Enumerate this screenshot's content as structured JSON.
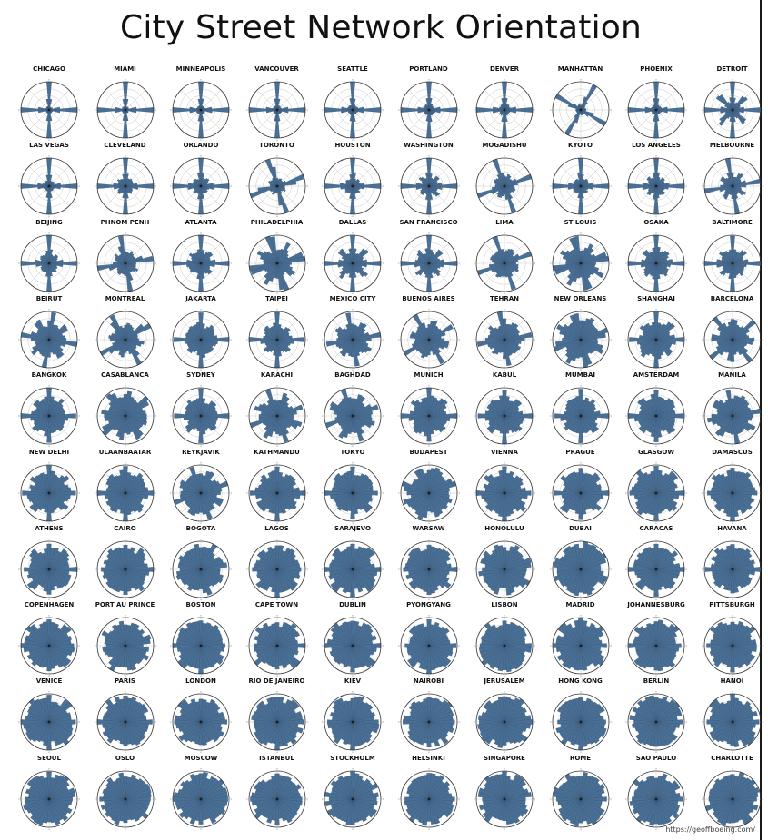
{
  "title": "City Street Network Orientation",
  "credit": "https://geoffboeing.com/",
  "colors": {
    "bar": "#4a6f95",
    "bar_edge": "#2f4f70",
    "grid": "#c8c8c8",
    "ring": "#333333"
  },
  "chart_data": {
    "type": "polar-histogram",
    "bins": 36,
    "cities": [
      {
        "name": "CHICAGO",
        "profile": {
          "rot": 0,
          "c": 0.95,
          "d": 0.0,
          "b": 0.02
        }
      },
      {
        "name": "MIAMI",
        "profile": {
          "rot": 0,
          "c": 0.95,
          "d": 0.0,
          "b": 0.02
        }
      },
      {
        "name": "MINNEAPOLIS",
        "profile": {
          "rot": 0,
          "c": 0.93,
          "d": 0.0,
          "b": 0.03
        }
      },
      {
        "name": "VANCOUVER",
        "profile": {
          "rot": 0,
          "c": 0.93,
          "d": 0.0,
          "b": 0.03
        }
      },
      {
        "name": "SEATTLE",
        "profile": {
          "rot": 0,
          "c": 0.92,
          "d": 0.0,
          "b": 0.04
        }
      },
      {
        "name": "PORTLAND",
        "profile": {
          "rot": 0,
          "c": 0.9,
          "d": 0.0,
          "b": 0.05
        }
      },
      {
        "name": "DENVER",
        "profile": {
          "rot": 0,
          "c": 0.9,
          "d": 0.0,
          "b": 0.05
        }
      },
      {
        "name": "MANHATTAN",
        "profile": {
          "rot": 29,
          "c": 0.92,
          "d": 0.0,
          "b": 0.04
        }
      },
      {
        "name": "PHOENIX",
        "profile": {
          "rot": 0,
          "c": 0.92,
          "d": 0.0,
          "b": 0.04
        }
      },
      {
        "name": "DETROIT",
        "profile": {
          "rot": 0,
          "c": 0.75,
          "d": 0.45,
          "b": 0.06
        }
      },
      {
        "name": "LAS VEGAS",
        "profile": {
          "rot": 0,
          "c": 0.9,
          "d": 0.0,
          "b": 0.05
        }
      },
      {
        "name": "CLEVELAND",
        "profile": {
          "rot": 0,
          "c": 0.85,
          "d": 0.05,
          "b": 0.08
        }
      },
      {
        "name": "ORLANDO",
        "profile": {
          "rot": 0,
          "c": 0.85,
          "d": 0.05,
          "b": 0.09
        }
      },
      {
        "name": "TORONTO",
        "profile": {
          "rot": -17,
          "c": 0.85,
          "d": 0.05,
          "b": 0.06
        }
      },
      {
        "name": "HOUSTON",
        "profile": {
          "rot": 0,
          "c": 0.85,
          "d": 0.05,
          "b": 0.08
        }
      },
      {
        "name": "WASHINGTON",
        "profile": {
          "rot": 0,
          "c": 0.85,
          "d": 0.15,
          "b": 0.1
        }
      },
      {
        "name": "MOGADISHU",
        "profile": {
          "rot": -20,
          "c": 0.75,
          "d": 0.1,
          "b": 0.12
        }
      },
      {
        "name": "KYOTO",
        "profile": {
          "rot": 0,
          "c": 0.85,
          "d": 0.05,
          "b": 0.08
        }
      },
      {
        "name": "LOS ANGELES",
        "profile": {
          "rot": 0,
          "c": 0.8,
          "d": 0.1,
          "b": 0.1
        }
      },
      {
        "name": "MELBOURNE",
        "profile": {
          "rot": -10,
          "c": 0.75,
          "d": 0.2,
          "b": 0.1
        }
      },
      {
        "name": "BEIJING",
        "profile": {
          "rot": 0,
          "c": 0.8,
          "d": 0.05,
          "b": 0.12
        }
      },
      {
        "name": "PHNOM PENH",
        "profile": {
          "rot": -12,
          "c": 0.8,
          "d": 0.1,
          "b": 0.14
        }
      },
      {
        "name": "ATLANTA",
        "profile": {
          "rot": 0,
          "c": 0.75,
          "d": 0.1,
          "b": 0.18
        }
      },
      {
        "name": "PHILADELPHIA",
        "profile": {
          "rot": -15,
          "c": 0.65,
          "d": 0.3,
          "b": 0.15
        }
      },
      {
        "name": "DALLAS",
        "profile": {
          "rot": 0,
          "c": 0.7,
          "d": 0.35,
          "b": 0.14
        }
      },
      {
        "name": "SAN FRANCISCO",
        "profile": {
          "rot": 0,
          "c": 0.72,
          "d": 0.25,
          "b": 0.15
        }
      },
      {
        "name": "LIMA",
        "profile": {
          "rot": -20,
          "c": 0.7,
          "d": 0.15,
          "b": 0.2
        }
      },
      {
        "name": "ST LOUIS",
        "profile": {
          "rot": -15,
          "c": 0.65,
          "d": 0.3,
          "b": 0.2
        }
      },
      {
        "name": "OSAKA",
        "profile": {
          "rot": 0,
          "c": 0.72,
          "d": 0.15,
          "b": 0.2
        }
      },
      {
        "name": "BALTIMORE",
        "profile": {
          "rot": 0,
          "c": 0.7,
          "d": 0.2,
          "b": 0.2
        }
      },
      {
        "name": "BEIRUT",
        "profile": {
          "rot": 10,
          "c": 0.55,
          "d": 0.3,
          "b": 0.3
        }
      },
      {
        "name": "MONTREAL",
        "profile": {
          "rot": -33,
          "c": 0.7,
          "d": 0.15,
          "b": 0.2
        }
      },
      {
        "name": "JAKARTA",
        "profile": {
          "rot": 0,
          "c": 0.65,
          "d": 0.15,
          "b": 0.3
        }
      },
      {
        "name": "TAIPEI",
        "profile": {
          "rot": 0,
          "c": 0.7,
          "d": 0.2,
          "b": 0.25
        }
      },
      {
        "name": "MEXICO CITY",
        "profile": {
          "rot": -10,
          "c": 0.6,
          "d": 0.25,
          "b": 0.3
        }
      },
      {
        "name": "BUENOS AIRES",
        "profile": {
          "rot": -30,
          "c": 0.6,
          "d": 0.35,
          "b": 0.28
        }
      },
      {
        "name": "TEHRAN",
        "profile": {
          "rot": -8,
          "c": 0.6,
          "d": 0.2,
          "b": 0.3
        }
      },
      {
        "name": "NEW ORLEANS",
        "profile": {
          "rot": -15,
          "c": 0.55,
          "d": 0.4,
          "b": 0.3
        }
      },
      {
        "name": "SHANGHAI",
        "profile": {
          "rot": 0,
          "c": 0.55,
          "d": 0.3,
          "b": 0.35
        }
      },
      {
        "name": "BARCELONA",
        "profile": {
          "rot": -40,
          "c": 0.6,
          "d": 0.3,
          "b": 0.3
        }
      },
      {
        "name": "BANGKOK",
        "profile": {
          "rot": 0,
          "c": 0.55,
          "d": 0.2,
          "b": 0.38
        }
      },
      {
        "name": "CASABLANCA",
        "profile": {
          "rot": -35,
          "c": 0.55,
          "d": 0.25,
          "b": 0.35
        }
      },
      {
        "name": "SYDNEY",
        "profile": {
          "rot": 0,
          "c": 0.55,
          "d": 0.2,
          "b": 0.3
        }
      },
      {
        "name": "KARACHI",
        "profile": {
          "rot": -20,
          "c": 0.5,
          "d": 0.45,
          "b": 0.35
        }
      },
      {
        "name": "BAGHDAD",
        "profile": {
          "rot": -20,
          "c": 0.5,
          "d": 0.4,
          "b": 0.38
        }
      },
      {
        "name": "MUNICH",
        "profile": {
          "rot": 0,
          "c": 0.5,
          "d": 0.25,
          "b": 0.45
        }
      },
      {
        "name": "KABUL",
        "profile": {
          "rot": 0,
          "c": 0.5,
          "d": 0.2,
          "b": 0.45
        }
      },
      {
        "name": "MUMBAI",
        "profile": {
          "rot": 0,
          "c": 0.5,
          "d": 0.2,
          "b": 0.42
        }
      },
      {
        "name": "AMSTERDAM",
        "profile": {
          "rot": 0,
          "c": 0.45,
          "d": 0.3,
          "b": 0.45
        }
      },
      {
        "name": "MANILA",
        "profile": {
          "rot": -10,
          "c": 0.45,
          "d": 0.35,
          "b": 0.45
        }
      },
      {
        "name": "NEW DELHI",
        "profile": {
          "rot": 0,
          "c": 0.45,
          "d": 0.3,
          "b": 0.45
        }
      },
      {
        "name": "ULAANBAATAR",
        "profile": {
          "rot": 0,
          "c": 0.45,
          "d": 0.25,
          "b": 0.5
        }
      },
      {
        "name": "REYKJAVIK",
        "profile": {
          "rot": -20,
          "c": 0.45,
          "d": 0.3,
          "b": 0.45
        }
      },
      {
        "name": "KATHMANDU",
        "profile": {
          "rot": 0,
          "c": 0.35,
          "d": 0.3,
          "b": 0.6
        }
      },
      {
        "name": "TOKYO",
        "profile": {
          "rot": 0,
          "c": 0.4,
          "d": 0.3,
          "b": 0.55
        }
      },
      {
        "name": "BUDAPEST",
        "profile": {
          "rot": -25,
          "c": 0.4,
          "d": 0.3,
          "b": 0.55
        }
      },
      {
        "name": "VIENNA",
        "profile": {
          "rot": 0,
          "c": 0.35,
          "d": 0.3,
          "b": 0.6
        }
      },
      {
        "name": "PRAGUE",
        "profile": {
          "rot": 0,
          "c": 0.35,
          "d": 0.3,
          "b": 0.6
        }
      },
      {
        "name": "GLASGOW",
        "profile": {
          "rot": 0,
          "c": 0.35,
          "d": 0.3,
          "b": 0.6
        }
      },
      {
        "name": "DAMASCUS",
        "profile": {
          "rot": 0,
          "c": 0.35,
          "d": 0.3,
          "b": 0.6
        }
      },
      {
        "name": "ATHENS",
        "profile": {
          "rot": 0,
          "c": 0.35,
          "d": 0.35,
          "b": 0.6
        }
      },
      {
        "name": "CAIRO",
        "profile": {
          "rot": 0,
          "c": 0.3,
          "d": 0.35,
          "b": 0.62
        }
      },
      {
        "name": "BOGOTA",
        "profile": {
          "rot": -15,
          "c": 0.35,
          "d": 0.35,
          "b": 0.6
        }
      },
      {
        "name": "LAGOS",
        "profile": {
          "rot": 0,
          "c": 0.3,
          "d": 0.3,
          "b": 0.65
        }
      },
      {
        "name": "SARAJEVO",
        "profile": {
          "rot": 0,
          "c": 0.3,
          "d": 0.3,
          "b": 0.65
        }
      },
      {
        "name": "WARSAW",
        "profile": {
          "rot": 0,
          "c": 0.3,
          "d": 0.3,
          "b": 0.65
        }
      },
      {
        "name": "HONOLULU",
        "profile": {
          "rot": -15,
          "c": 0.3,
          "d": 0.35,
          "b": 0.65
        }
      },
      {
        "name": "DUBAI",
        "profile": {
          "rot": -25,
          "c": 0.3,
          "d": 0.3,
          "b": 0.65
        }
      },
      {
        "name": "CARACAS",
        "profile": {
          "rot": 0,
          "c": 0.3,
          "d": 0.3,
          "b": 0.65
        }
      },
      {
        "name": "HAVANA",
        "profile": {
          "rot": 0,
          "c": 0.3,
          "d": 0.3,
          "b": 0.65
        }
      },
      {
        "name": "COPENHAGEN",
        "profile": {
          "rot": 0,
          "c": 0.25,
          "d": 0.3,
          "b": 0.72
        }
      },
      {
        "name": "PORT AU PRINCE",
        "profile": {
          "rot": -15,
          "c": 0.3,
          "d": 0.3,
          "b": 0.68
        }
      },
      {
        "name": "BOSTON",
        "profile": {
          "rot": 0,
          "c": 0.25,
          "d": 0.3,
          "b": 0.7
        }
      },
      {
        "name": "CAPE TOWN",
        "profile": {
          "rot": 0,
          "c": 0.22,
          "d": 0.3,
          "b": 0.72
        }
      },
      {
        "name": "DUBLIN",
        "profile": {
          "rot": 0,
          "c": 0.22,
          "d": 0.3,
          "b": 0.72
        }
      },
      {
        "name": "PYONGYANG",
        "profile": {
          "rot": 0,
          "c": 0.22,
          "d": 0.3,
          "b": 0.72
        }
      },
      {
        "name": "LISBON",
        "profile": {
          "rot": 0,
          "c": 0.2,
          "d": 0.3,
          "b": 0.75
        }
      },
      {
        "name": "MADRID",
        "profile": {
          "rot": 0,
          "c": 0.2,
          "d": 0.3,
          "b": 0.72
        }
      },
      {
        "name": "JOHANNESBURG",
        "profile": {
          "rot": 0,
          "c": 0.2,
          "d": 0.3,
          "b": 0.75
        }
      },
      {
        "name": "PITTSBURGH",
        "profile": {
          "rot": 0,
          "c": 0.2,
          "d": 0.3,
          "b": 0.75
        }
      },
      {
        "name": "VENICE",
        "profile": {
          "rot": 0,
          "c": 0.18,
          "d": 0.3,
          "b": 0.78
        }
      },
      {
        "name": "PARIS",
        "profile": {
          "rot": 0,
          "c": 0.18,
          "d": 0.3,
          "b": 0.78
        }
      },
      {
        "name": "LONDON",
        "profile": {
          "rot": 0,
          "c": 0.15,
          "d": 0.25,
          "b": 0.82
        }
      },
      {
        "name": "RIO DE JANEIRO",
        "profile": {
          "rot": 0,
          "c": 0.15,
          "d": 0.25,
          "b": 0.8
        }
      },
      {
        "name": "KIEV",
        "profile": {
          "rot": 0,
          "c": 0.15,
          "d": 0.25,
          "b": 0.8
        }
      },
      {
        "name": "NAIROBI",
        "profile": {
          "rot": 0,
          "c": 0.15,
          "d": 0.25,
          "b": 0.8
        }
      },
      {
        "name": "JERUSALEM",
        "profile": {
          "rot": 0,
          "c": 0.12,
          "d": 0.25,
          "b": 0.82
        }
      },
      {
        "name": "HONG KONG",
        "profile": {
          "rot": 0,
          "c": 0.12,
          "d": 0.25,
          "b": 0.82
        }
      },
      {
        "name": "BERLIN",
        "profile": {
          "rot": 0,
          "c": 0.12,
          "d": 0.25,
          "b": 0.85
        }
      },
      {
        "name": "HANOI",
        "profile": {
          "rot": 0,
          "c": 0.12,
          "d": 0.25,
          "b": 0.82
        }
      },
      {
        "name": "SEOUL",
        "profile": {
          "rot": 0,
          "c": 0.1,
          "d": 0.2,
          "b": 0.86
        }
      },
      {
        "name": "OSLO",
        "profile": {
          "rot": 0,
          "c": 0.08,
          "d": 0.2,
          "b": 0.88
        }
      },
      {
        "name": "MOSCOW",
        "profile": {
          "rot": 0,
          "c": 0.08,
          "d": 0.2,
          "b": 0.88
        }
      },
      {
        "name": "ISTANBUL",
        "profile": {
          "rot": 0,
          "c": 0.06,
          "d": 0.2,
          "b": 0.9
        }
      },
      {
        "name": "STOCKHOLM",
        "profile": {
          "rot": 0,
          "c": 0.06,
          "d": 0.2,
          "b": 0.9
        }
      },
      {
        "name": "HELSINKI",
        "profile": {
          "rot": 0,
          "c": 0.06,
          "d": 0.2,
          "b": 0.9
        }
      },
      {
        "name": "SINGAPORE",
        "profile": {
          "rot": 0,
          "c": 0.05,
          "d": 0.2,
          "b": 0.9
        }
      },
      {
        "name": "ROME",
        "profile": {
          "rot": 0,
          "c": 0.03,
          "d": 0.15,
          "b": 0.94
        }
      },
      {
        "name": "SAO PAULO",
        "profile": {
          "rot": 0,
          "c": 0.03,
          "d": 0.15,
          "b": 0.94
        }
      },
      {
        "name": "CHARLOTTE",
        "profile": {
          "rot": 0,
          "c": 0.02,
          "d": 0.1,
          "b": 0.96
        }
      }
    ]
  }
}
